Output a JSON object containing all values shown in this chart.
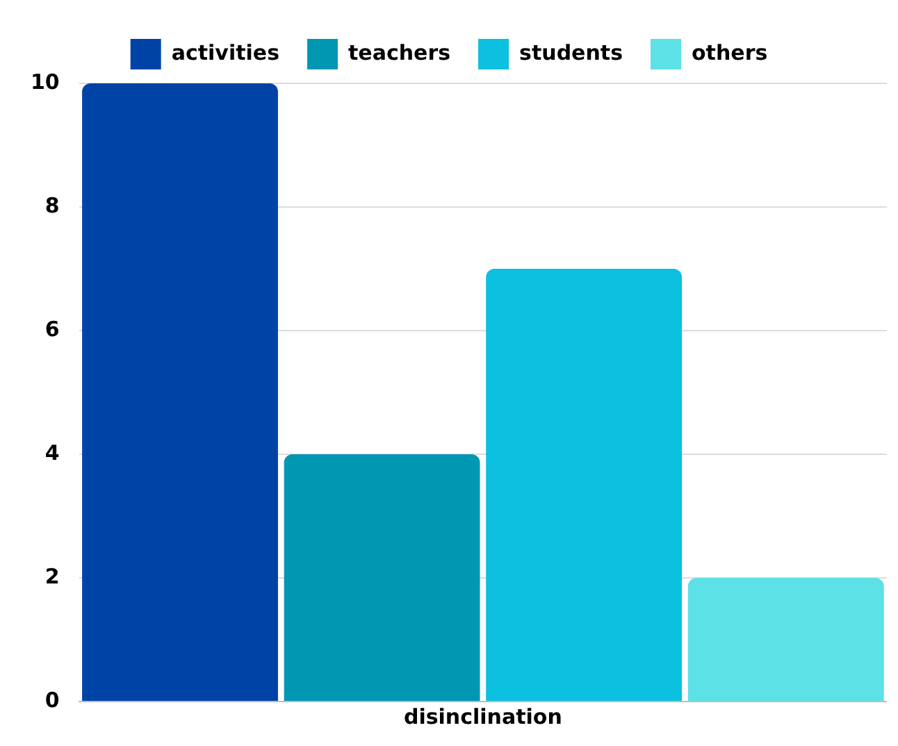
{
  "chart_data": {
    "type": "bar",
    "categories": [
      "disinclination"
    ],
    "series": [
      {
        "name": "activities",
        "color": "#0043a6",
        "values": [
          10
        ]
      },
      {
        "name": "teachers",
        "color": "#0097b2",
        "values": [
          4
        ]
      },
      {
        "name": "students",
        "color": "#0cc0df",
        "values": [
          7
        ]
      },
      {
        "name": "others",
        "color": "#5ce1e6",
        "values": [
          2
        ]
      }
    ],
    "ylim": [
      0,
      10
    ],
    "yticks": [
      0,
      2,
      4,
      6,
      8,
      10
    ],
    "grid": "y",
    "legend": "top"
  }
}
